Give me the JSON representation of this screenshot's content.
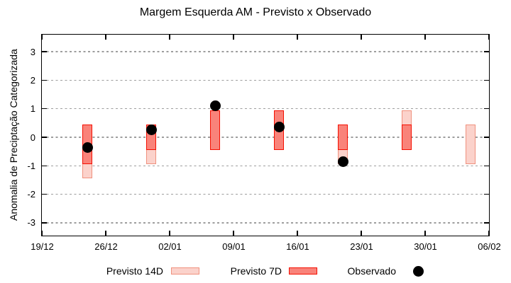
{
  "title": "Margem Esquerda AM - Previsto x Observado",
  "colors": {
    "previsto_14d_fill": "#fbd2cb",
    "previsto_14d_border": "#f0917e",
    "previsto_7d_fill": "#f9837a",
    "previsto_7d_border": "#f50f00",
    "observado": "#000000",
    "gridline": "#9e9e9e",
    "axis": "#000000"
  },
  "legend": {
    "previsto_14d_label": "Previsto 14D",
    "previsto_7d_label": "Previsto 7D",
    "observado_label": "Observado"
  },
  "chart_data": {
    "type": "bar",
    "subtype": "forecast-range-bars-with-observed-points",
    "title": "Margem Esquerda AM - Previsto x Observado",
    "xlabel": "",
    "ylabel": "Anomalia de Preciptação Categorizada",
    "ylim": [
      -3.45,
      3.6
    ],
    "yticks": [
      -3,
      -2,
      -1,
      0,
      1,
      2,
      3
    ],
    "grid": "horizontal-dashed",
    "legend_position": "bottom",
    "xlim_days": [
      0,
      49
    ],
    "xticks": [
      {
        "day": 0,
        "label": "19/12"
      },
      {
        "day": 7,
        "label": "26/12"
      },
      {
        "day": 14,
        "label": "02/01"
      },
      {
        "day": 21,
        "label": "09/01"
      },
      {
        "day": 28,
        "label": "16/01"
      },
      {
        "day": 35,
        "label": "23/01"
      },
      {
        "day": 42,
        "label": "30/01"
      },
      {
        "day": 49,
        "label": "06/02"
      }
    ],
    "series": [
      {
        "name": "Previsto 14D",
        "type": "range-bar"
      },
      {
        "name": "Previsto 7D",
        "type": "range-bar"
      },
      {
        "name": "Observado",
        "type": "point"
      }
    ],
    "bars": [
      {
        "date": "24/12",
        "day": 5,
        "previsto_14d": [
          -1.45,
          0.45
        ],
        "previsto_7d": [
          -0.95,
          0.45
        ],
        "observado": -0.35
      },
      {
        "date": "31/12",
        "day": 12,
        "previsto_14d": [
          -0.95,
          0.45
        ],
        "previsto_7d": [
          -0.45,
          0.45
        ],
        "observado": 0.25
      },
      {
        "date": "07/01",
        "day": 19,
        "previsto_14d": null,
        "previsto_7d": [
          -0.45,
          0.95
        ],
        "observado": 1.1
      },
      {
        "date": "14/01",
        "day": 26,
        "previsto_14d": null,
        "previsto_7d": [
          -0.45,
          0.95
        ],
        "observado": 0.35
      },
      {
        "date": "21/01",
        "day": 33,
        "previsto_14d": [
          -0.95,
          0.45
        ],
        "previsto_7d": [
          -0.45,
          0.45
        ],
        "observado": -0.85
      },
      {
        "date": "28/01",
        "day": 40,
        "previsto_14d": [
          -0.45,
          0.95
        ],
        "previsto_7d": [
          -0.45,
          0.45
        ],
        "observado": null
      },
      {
        "date": "04/02",
        "day": 47,
        "previsto_14d": [
          -0.95,
          0.45
        ],
        "previsto_7d": null,
        "observado": null
      }
    ]
  }
}
